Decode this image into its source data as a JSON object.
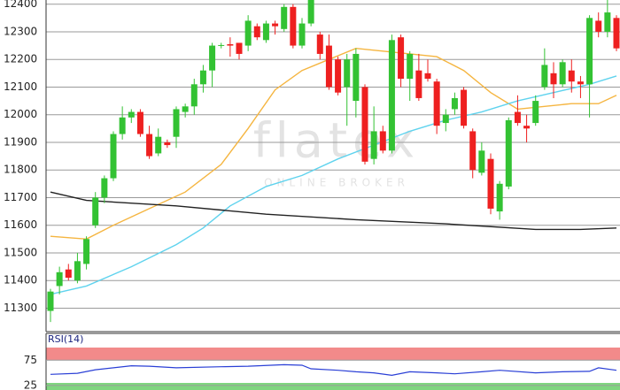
{
  "chart_data": [
    {
      "type": "candlestick",
      "watermark": "flatex",
      "watermark_sub": "ONLINE BROKER",
      "ylim": [
        11215,
        12415
      ],
      "yticks": [
        11300,
        11400,
        11500,
        11600,
        11700,
        11800,
        11900,
        12000,
        12100,
        12200,
        12300,
        12400
      ],
      "grid": true,
      "up_color": "#33c233",
      "down_color": "#ee2020",
      "open": [
        11290,
        11380,
        11440,
        11400,
        11460,
        11600,
        11700,
        11770,
        11930,
        11990,
        12010,
        11930,
        11860,
        11900,
        11920,
        12010,
        12030,
        12110,
        12160,
        12250,
        12255,
        12260,
        12250,
        12320,
        12270,
        12330,
        12310,
        12390,
        12250,
        12330,
        12290,
        12250,
        12200,
        12100,
        12050,
        12100,
        11840,
        11940,
        11870,
        12280,
        12130,
        12160,
        12150,
        12120,
        11970,
        12020,
        12090,
        11940,
        11790,
        11840,
        11650,
        11740,
        12010,
        11960,
        11970,
        12100,
        12150,
        12110,
        12160,
        12120,
        12110,
        12340,
        12300,
        12350
      ],
      "high": [
        11370,
        11450,
        11460,
        11500,
        11560,
        11720,
        11780,
        11940,
        12030,
        12020,
        12020,
        11960,
        11950,
        11910,
        12030,
        12040,
        12130,
        12180,
        12260,
        12260,
        12280,
        12260,
        12360,
        12330,
        12340,
        12340,
        12400,
        12400,
        12350,
        12420,
        12300,
        12290,
        12210,
        12220,
        12240,
        12110,
        12030,
        11960,
        12290,
        12290,
        12230,
        12220,
        12200,
        12130,
        12020,
        12080,
        12100,
        11950,
        11900,
        11860,
        11760,
        11990,
        12070,
        12000,
        12070,
        12240,
        12190,
        12200,
        12200,
        12140,
        12360,
        12370,
        12420,
        12360
      ],
      "low": [
        11250,
        11350,
        11400,
        11390,
        11440,
        11590,
        11680,
        11760,
        11910,
        11970,
        11920,
        11840,
        11850,
        11880,
        11880,
        11990,
        12000,
        12080,
        12100,
        12240,
        12210,
        12200,
        12230,
        12270,
        12260,
        12290,
        12300,
        12240,
        12240,
        12320,
        12200,
        12090,
        12070,
        11960,
        11990,
        11820,
        11820,
        11860,
        11860,
        12100,
        12050,
        12050,
        12120,
        11930,
        11940,
        12000,
        11950,
        11770,
        11780,
        11640,
        11620,
        11730,
        11960,
        11900,
        11960,
        12090,
        12060,
        12100,
        12080,
        12060,
        11990,
        12280,
        12280,
        12230
      ],
      "close": [
        11360,
        11430,
        11410,
        11470,
        11550,
        11700,
        11770,
        11930,
        11990,
        12010,
        11930,
        11850,
        11920,
        11890,
        12020,
        12030,
        12110,
        12160,
        12250,
        12252,
        12250,
        12220,
        12340,
        12280,
        12330,
        12320,
        12390,
        12250,
        12330,
        12420,
        12220,
        12100,
        12080,
        12200,
        12220,
        11830,
        11940,
        11870,
        12270,
        12130,
        12220,
        12060,
        12130,
        11960,
        12000,
        12060,
        11960,
        11800,
        11870,
        11660,
        11750,
        11980,
        11970,
        11950,
        12050,
        12180,
        12110,
        12190,
        12120,
        12110,
        12350,
        12300,
        12370,
        12240
      ],
      "lines": [
        {
          "color": "#f5b540",
          "x": [
            0,
            4,
            7,
            11,
            15,
            19,
            22,
            25,
            28,
            31,
            34,
            37,
            40,
            43,
            46,
            49,
            52,
            55,
            58,
            61,
            63
          ],
          "values": [
            11560,
            11550,
            11600,
            11660,
            11720,
            11820,
            11950,
            12090,
            12160,
            12200,
            12240,
            12230,
            12220,
            12210,
            12160,
            12080,
            12020,
            12030,
            12040,
            12040,
            12070
          ]
        },
        {
          "color": "#5fd3ee",
          "x": [
            0,
            4,
            9,
            14,
            17,
            20,
            24,
            28,
            32,
            36,
            40,
            44,
            48,
            52,
            56,
            60,
            63
          ],
          "values": [
            11350,
            11380,
            11450,
            11530,
            11590,
            11670,
            11740,
            11780,
            11840,
            11890,
            11940,
            11980,
            12010,
            12050,
            12080,
            12110,
            12140
          ]
        },
        {
          "color": "#222222",
          "x": [
            0,
            4,
            14,
            24,
            34,
            44,
            54,
            59,
            63
          ],
          "values": [
            11720,
            11690,
            11670,
            11640,
            11620,
            11605,
            11585,
            11585,
            11590
          ]
        }
      ]
    },
    {
      "type": "line",
      "title": "RSI(14)",
      "ylim": [
        16,
        128
      ],
      "yticks": [
        75,
        25
      ],
      "xlim": [
        0,
        63
      ],
      "bands": [
        {
          "from": 75,
          "to": 100,
          "color": "#f28a8a"
        },
        {
          "from": 16,
          "to": 30,
          "color": "#7fd67f"
        }
      ],
      "series": [
        {
          "color": "#2a3fd6",
          "x": [
            0,
            3,
            5,
            9,
            11,
            14,
            19,
            22,
            26,
            28,
            29,
            32,
            34,
            36,
            38,
            40,
            43,
            45,
            48,
            50,
            54,
            57,
            60,
            61,
            63
          ],
          "values": [
            47,
            49,
            56,
            64,
            63,
            60,
            62,
            63,
            66,
            65,
            58,
            55,
            52,
            50,
            45,
            52,
            50,
            48,
            52,
            55,
            50,
            52,
            53,
            60,
            55
          ]
        }
      ]
    }
  ]
}
